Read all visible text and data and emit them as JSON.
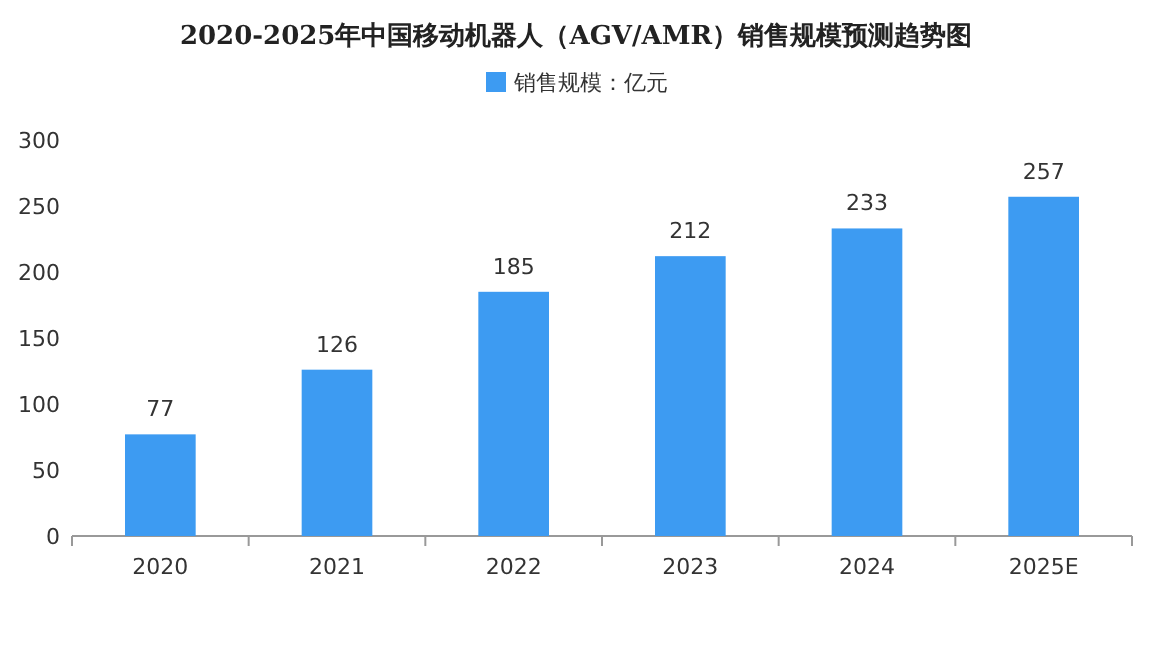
{
  "chart_data": {
    "type": "bar",
    "title": "2020-2025年中国移动机器人（AGV/AMR）销售规模预测趋势图",
    "categories": [
      "2020",
      "2021",
      "2022",
      "2023",
      "2024",
      "2025E"
    ],
    "series": [
      {
        "name": "销售规模：亿元",
        "color": "#3d9bf2",
        "values": [
          77,
          126,
          185,
          212,
          233,
          257
        ]
      }
    ],
    "ylim": [
      0,
      300
    ],
    "yticks": [
      0,
      50,
      100,
      150,
      200,
      250,
      300
    ],
    "data_labels": true,
    "legend": "top",
    "grid": false
  }
}
